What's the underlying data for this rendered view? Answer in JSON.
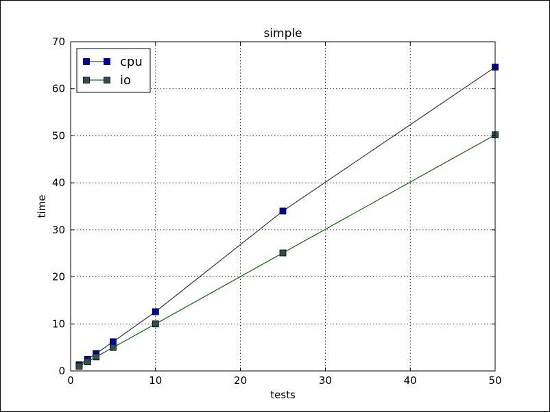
{
  "chart_data": {
    "type": "line",
    "title": "simple",
    "xlabel": "tests",
    "ylabel": "time",
    "xlim": [
      0,
      50
    ],
    "ylim": [
      0,
      70
    ],
    "xticks": [
      0,
      10,
      20,
      30,
      40,
      50
    ],
    "yticks": [
      0,
      10,
      20,
      30,
      40,
      50,
      60,
      70
    ],
    "grid": true,
    "legend_position": "top-left",
    "x": [
      1,
      2,
      3,
      5,
      10,
      25,
      50
    ],
    "series": [
      {
        "name": "cpu",
        "values": [
          1.3,
          2.5,
          3.7,
          6.2,
          12.6,
          34.0,
          64.6
        ],
        "color": "#0000aa",
        "line_color": "#404060"
      },
      {
        "name": "io",
        "values": [
          1.0,
          2.0,
          3.0,
          5.0,
          10.0,
          25.1,
          50.2
        ],
        "color": "#2f4f4f",
        "line_color": "#1e6b1e"
      }
    ]
  }
}
